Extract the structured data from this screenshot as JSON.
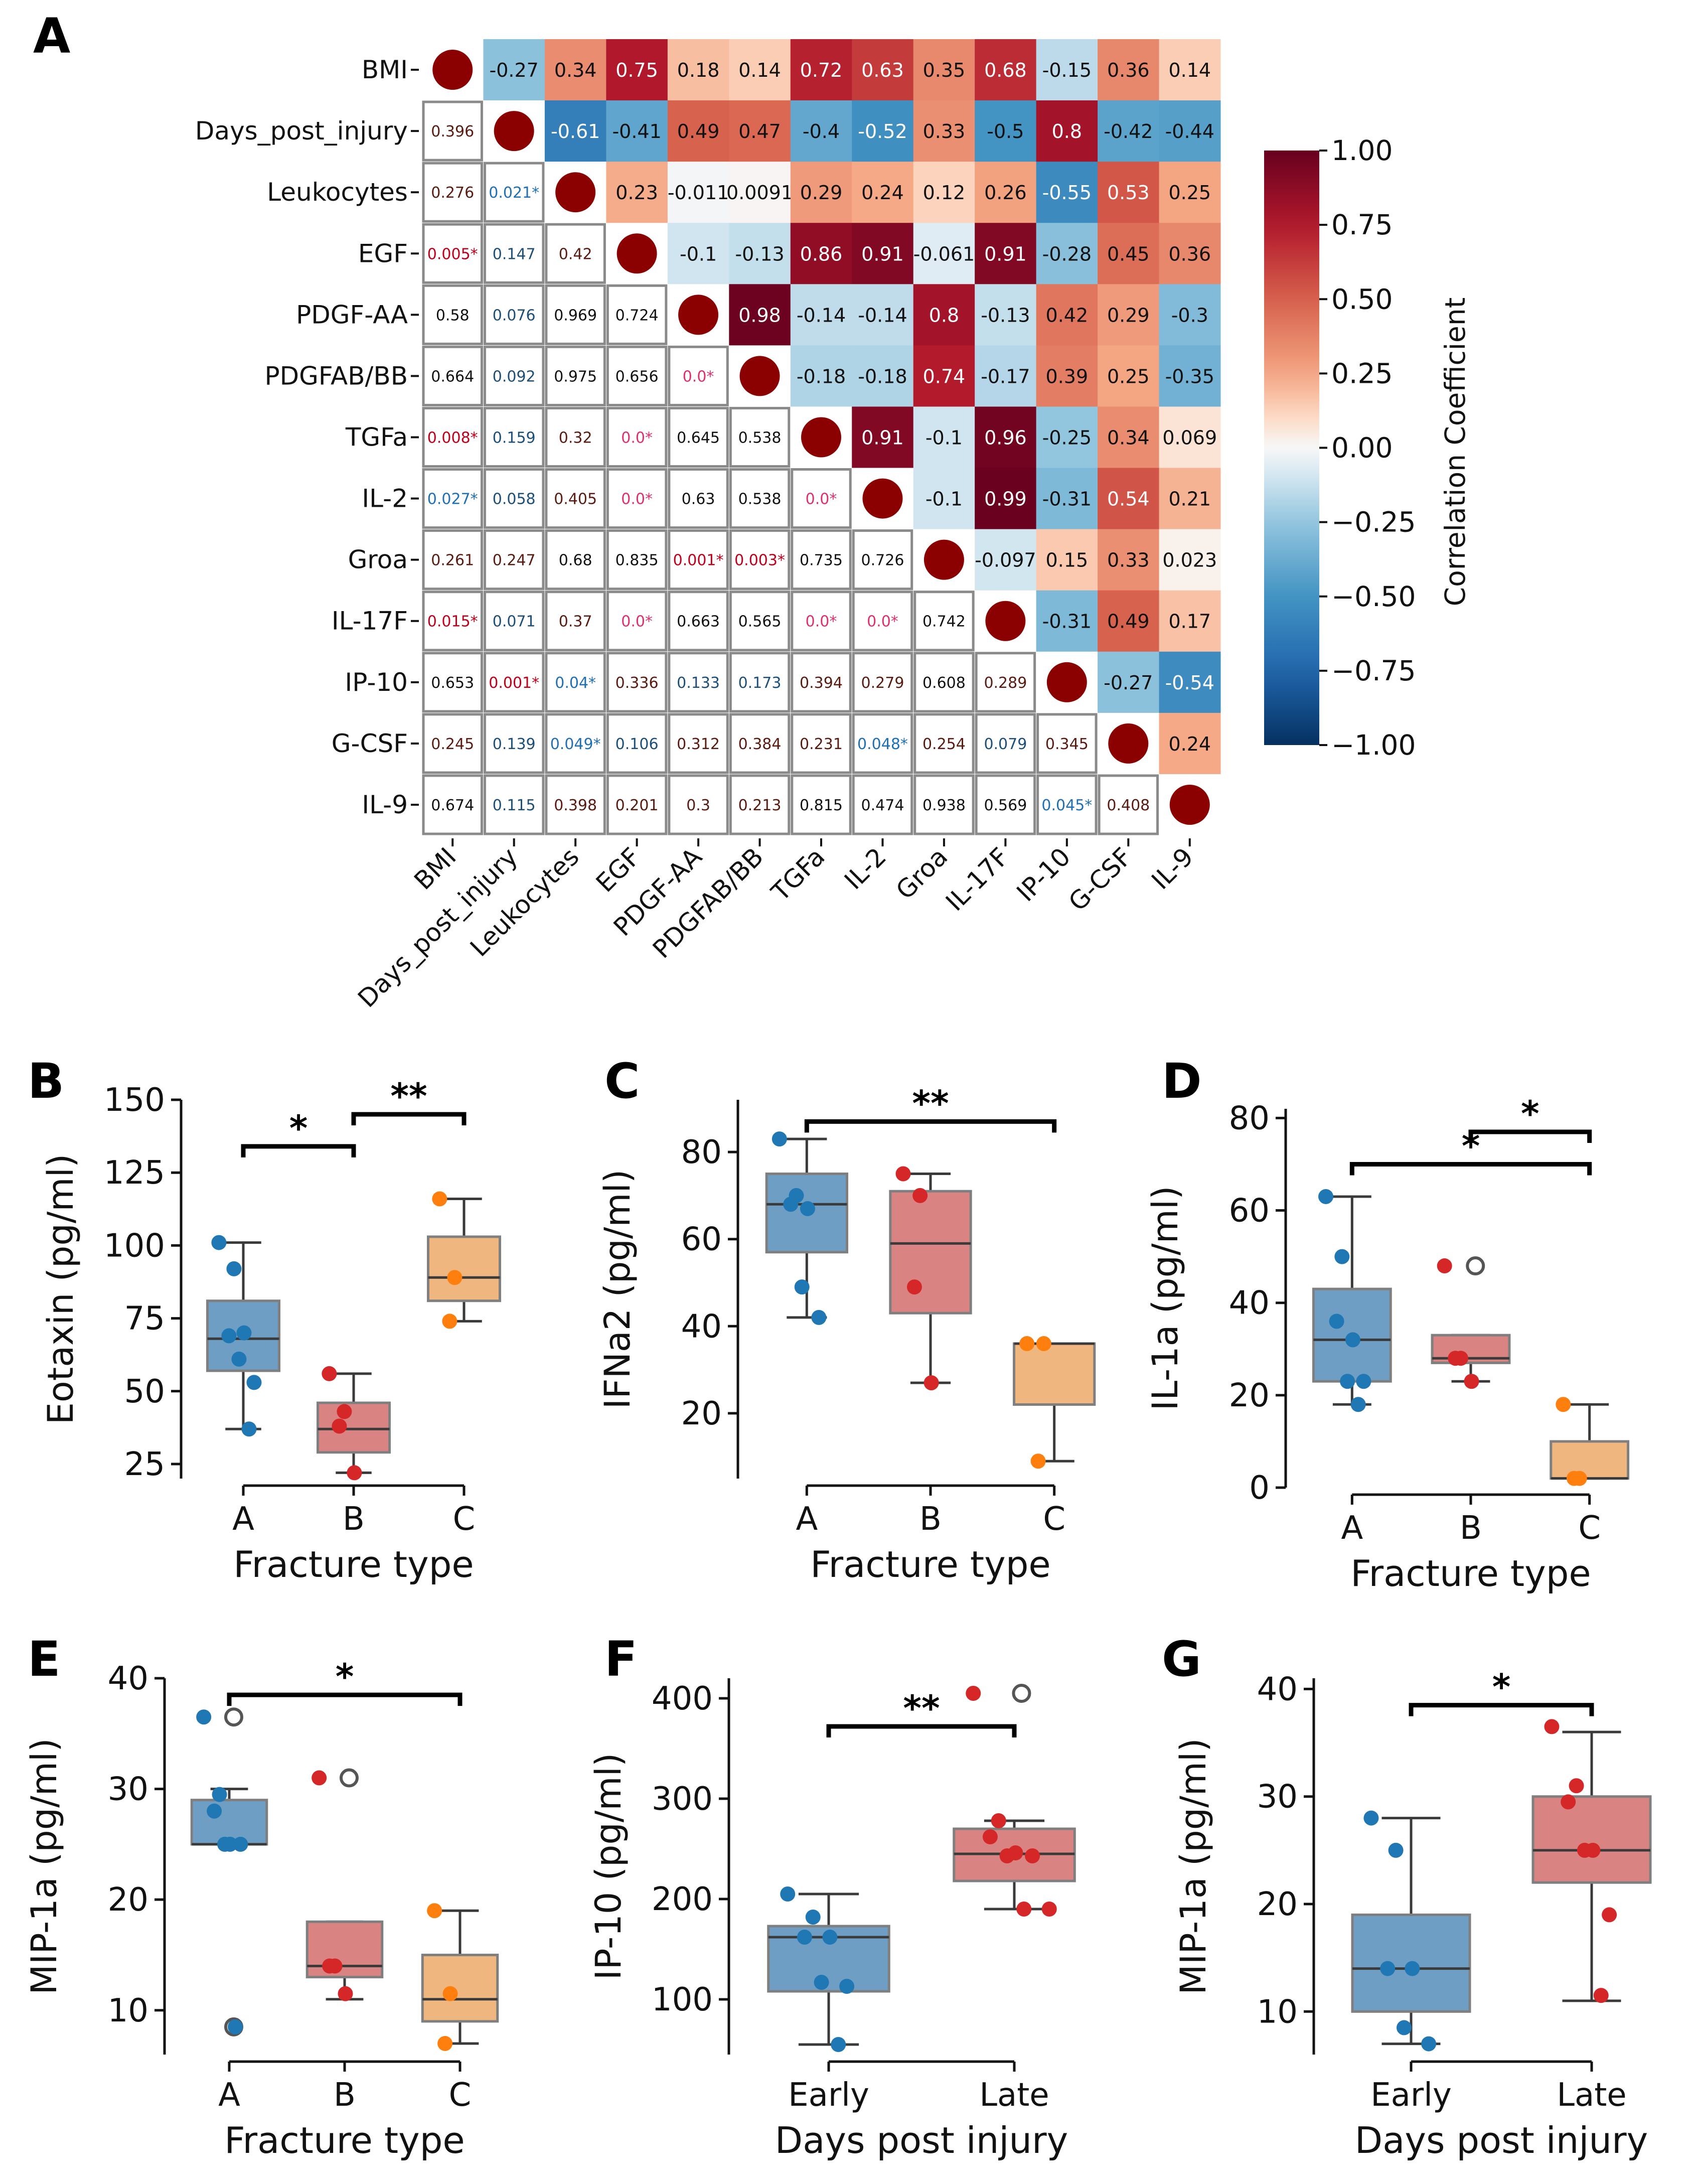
{
  "figure": {
    "panel_labels": [
      "A",
      "B",
      "C",
      "D",
      "E",
      "F",
      "G"
    ]
  },
  "chart_data": [
    {
      "panel": "A",
      "type": "heatmap",
      "variables": [
        "BMI",
        "Days_post_injury",
        "Leukocytes",
        "EGF",
        "PDGF-AA",
        "PDGFAB/BB",
        "TGFa",
        "IL-2",
        "Groa",
        "IL-17F",
        "IP-10",
        "G-CSF",
        "IL-9"
      ],
      "upper_triangle_labels": [
        [
          "",
          "-0.27",
          "0.34",
          "0.75",
          "0.18",
          "0.14",
          "0.72",
          "0.63",
          "0.35",
          "0.68",
          "-0.15",
          "0.36",
          "0.14"
        ],
        [
          "",
          "",
          "-0.61",
          "-0.41",
          "0.49",
          "0.47",
          "-0.4",
          "-0.52",
          "0.33",
          "-0.5",
          "0.8",
          "-0.42",
          "-0.44"
        ],
        [
          "",
          "",
          "",
          "0.23",
          "-0.011",
          "0.0091",
          "0.29",
          "0.24",
          "0.12",
          "0.26",
          "-0.55",
          "0.53",
          "0.25"
        ],
        [
          "",
          "",
          "",
          "",
          "-0.1",
          "-0.13",
          "0.86",
          "0.91",
          "-0.061",
          "0.91",
          "-0.28",
          "0.45",
          "0.36"
        ],
        [
          "",
          "",
          "",
          "",
          "",
          "0.98",
          "-0.14",
          "-0.14",
          "0.8",
          "-0.13",
          "0.42",
          "0.29",
          "-0.3"
        ],
        [
          "",
          "",
          "",
          "",
          "",
          "",
          "-0.18",
          "-0.18",
          "0.74",
          "-0.17",
          "0.39",
          "0.25",
          "-0.35"
        ],
        [
          "",
          "",
          "",
          "",
          "",
          "",
          "",
          "0.91",
          "-0.1",
          "0.96",
          "-0.25",
          "0.34",
          "0.069"
        ],
        [
          "",
          "",
          "",
          "",
          "",
          "",
          "",
          "",
          "-0.1",
          "0.99",
          "-0.31",
          "0.54",
          "0.21"
        ],
        [
          "",
          "",
          "",
          "",
          "",
          "",
          "",
          "",
          "",
          "-0.097",
          "0.15",
          "0.33",
          "0.023"
        ],
        [
          "",
          "",
          "",
          "",
          "",
          "",
          "",
          "",
          "",
          "",
          "-0.31",
          "0.49",
          "0.17"
        ],
        [
          "",
          "",
          "",
          "",
          "",
          "",
          "",
          "",
          "",
          "",
          "",
          "-0.27",
          "-0.54"
        ],
        [
          "",
          "",
          "",
          "",
          "",
          "",
          "",
          "",
          "",
          "",
          "",
          "",
          "0.24"
        ],
        [
          "",
          "",
          "",
          "",
          "",
          "",
          "",
          "",
          "",
          "",
          "",
          "",
          ""
        ]
      ],
      "lower_triangle_pvalues": [
        [],
        [
          "0.396"
        ],
        [
          "0.276",
          "0.021*"
        ],
        [
          "0.005*",
          "0.147",
          "0.42"
        ],
        [
          "0.58",
          "0.076",
          "0.969",
          "0.724"
        ],
        [
          "0.664",
          "0.092",
          "0.975",
          "0.656",
          "0.0*"
        ],
        [
          "0.008*",
          "0.159",
          "0.32",
          "0.0*",
          "0.645",
          "0.538"
        ],
        [
          "0.027*",
          "0.058",
          "0.405",
          "0.0*",
          "0.63",
          "0.538",
          "0.0*"
        ],
        [
          "0.261",
          "0.247",
          "0.68",
          "0.835",
          "0.001*",
          "0.003*",
          "0.735",
          "0.726"
        ],
        [
          "0.015*",
          "0.071",
          "0.37",
          "0.0*",
          "0.663",
          "0.565",
          "0.0*",
          "0.0*",
          "0.742"
        ],
        [
          "0.653",
          "0.001*",
          "0.04*",
          "0.336",
          "0.133",
          "0.173",
          "0.394",
          "0.279",
          "0.608",
          "0.289"
        ],
        [
          "0.245",
          "0.139",
          "0.049*",
          "0.106",
          "0.312",
          "0.384",
          "0.231",
          "0.048*",
          "0.254",
          "0.079",
          "0.345"
        ],
        [
          "0.674",
          "0.115",
          "0.398",
          "0.201",
          "0.3",
          "0.213",
          "0.815",
          "0.474",
          "0.938",
          "0.569",
          "0.045*",
          "0.408"
        ]
      ],
      "colorbar": {
        "label": "Correlation Coefficient",
        "range": [
          -1.0,
          1.0
        ],
        "ticks": [
          "1.00",
          "0.75",
          "0.50",
          "0.25",
          "0.00",
          "−0.25",
          "−0.50",
          "−0.75",
          "−1.00"
        ],
        "colormap": "RdBu_r"
      },
      "colors": {
        "diagonal_dot": "#8b0000",
        "grid_line": "#8a8a8a"
      }
    },
    {
      "panel": "B",
      "type": "box",
      "ylabel": "Eotaxin (pg/ml)",
      "xlabel": "Fracture type",
      "ylim": [
        20,
        150
      ],
      "yticks": [
        "25",
        "50",
        "75",
        "100",
        "125",
        "150"
      ],
      "categories": [
        "A",
        "B",
        "C"
      ],
      "boxes": [
        {
          "q1": 57,
          "median": 68,
          "q3": 81,
          "whislo": 37,
          "whishi": 101
        },
        {
          "q1": 29,
          "median": 37,
          "q3": 46,
          "whislo": 22,
          "whishi": 56
        },
        {
          "q1": 81,
          "median": 89,
          "q3": 103,
          "whislo": 74,
          "whishi": 116
        }
      ],
      "points": [
        [
          101,
          92,
          69,
          70,
          61,
          53,
          37
        ],
        [
          56,
          43,
          38,
          22
        ],
        [
          116,
          89,
          74
        ]
      ],
      "outliers": [
        [],
        [],
        []
      ],
      "brackets": [
        {
          "from": 0,
          "to": 1,
          "y": 134,
          "label": "*"
        },
        {
          "from": 1,
          "to": 2,
          "y": 145,
          "label": "**"
        }
      ]
    },
    {
      "panel": "C",
      "type": "box",
      "ylabel": "IFNa2 (pg/ml)",
      "xlabel": "Fracture type",
      "ylim": [
        5,
        92
      ],
      "yticks": [
        "20",
        "40",
        "60",
        "80"
      ],
      "categories": [
        "A",
        "B",
        "C"
      ],
      "boxes": [
        {
          "q1": 57,
          "median": 68,
          "q3": 75,
          "whislo": 42,
          "whishi": 83
        },
        {
          "q1": 43,
          "median": 59,
          "q3": 71,
          "whislo": 27,
          "whishi": 75
        },
        {
          "q1": 22,
          "median": 36,
          "q3": 36,
          "whislo": 9,
          "whishi": 36
        }
      ],
      "points": [
        [
          83,
          70,
          68,
          67,
          49,
          42
        ],
        [
          75,
          70,
          49,
          27
        ],
        [
          36,
          36,
          9
        ]
      ],
      "outliers": [
        [],
        [],
        []
      ],
      "brackets": [
        {
          "from": 0,
          "to": 2,
          "y": 87,
          "label": "**"
        }
      ]
    },
    {
      "panel": "D",
      "type": "box",
      "ylabel": "IL-1a (pg/ml)",
      "xlabel": "Fracture type",
      "ylim": [
        0,
        82
      ],
      "yticks": [
        "0",
        "20",
        "40",
        "60",
        "80"
      ],
      "categories": [
        "A",
        "B",
        "C"
      ],
      "boxes": [
        {
          "q1": 23,
          "median": 32,
          "q3": 43,
          "whislo": 18,
          "whishi": 63
        },
        {
          "q1": 27,
          "median": 28,
          "q3": 33,
          "whislo": 23,
          "whishi": 33
        },
        {
          "q1": 2,
          "median": 2,
          "q3": 10,
          "whislo": 2,
          "whishi": 18
        }
      ],
      "points": [
        [
          63,
          50,
          36,
          32,
          23,
          23,
          18
        ],
        [
          48,
          28,
          28,
          23
        ],
        [
          18,
          2,
          2
        ]
      ],
      "outliers": [
        [],
        [
          48
        ],
        []
      ],
      "brackets": [
        {
          "from": 0,
          "to": 2,
          "y": 70,
          "label": "*"
        },
        {
          "from": 1,
          "to": 2,
          "y": 77,
          "label": "*"
        }
      ]
    },
    {
      "panel": "E",
      "type": "box",
      "ylabel": "MIP-1a (pg/ml)",
      "xlabel": "Fracture type",
      "ylim": [
        6,
        40
      ],
      "yticks": [
        "10",
        "20",
        "30",
        "40"
      ],
      "categories": [
        "A",
        "B",
        "C"
      ],
      "boxes": [
        {
          "q1": 25,
          "median": 25,
          "q3": 29,
          "whislo": 25,
          "whishi": 30
        },
        {
          "q1": 13,
          "median": 14,
          "q3": 18,
          "whislo": 11,
          "whishi": 18
        },
        {
          "q1": 9,
          "median": 11,
          "q3": 15,
          "whislo": 7,
          "whishi": 19
        }
      ],
      "points": [
        [
          36.5,
          29.5,
          28,
          25,
          25,
          25,
          8.5
        ],
        [
          31,
          14,
          14,
          11.5
        ],
        [
          19,
          11.5,
          7
        ]
      ],
      "outliers": [
        [
          36.5,
          8.5
        ],
        [
          31
        ],
        []
      ],
      "brackets": [
        {
          "from": 0,
          "to": 2,
          "y": 38.5,
          "label": "*"
        }
      ]
    },
    {
      "panel": "F",
      "type": "box",
      "ylabel": "IP-10 (pg/ml)",
      "xlabel": "Days post injury",
      "ylim": [
        45,
        420
      ],
      "yticks": [
        "100",
        "200",
        "300",
        "400"
      ],
      "categories": [
        "Early",
        "Late"
      ],
      "boxes": [
        {
          "q1": 108,
          "median": 162,
          "q3": 173,
          "whislo": 55,
          "whishi": 205
        },
        {
          "q1": 218,
          "median": 245,
          "q3": 270,
          "whislo": 190,
          "whishi": 278
        }
      ],
      "points": [
        [
          205,
          182,
          162,
          162,
          117,
          113,
          55
        ],
        [
          405,
          278,
          262,
          246,
          243,
          243,
          190,
          190
        ]
      ],
      "outliers": [
        [],
        [
          405
        ]
      ],
      "brackets": [
        {
          "from": 0,
          "to": 1,
          "y": 372,
          "label": "**"
        }
      ]
    },
    {
      "panel": "G",
      "type": "box",
      "ylabel": "MIP-1a (pg/ml)",
      "xlabel": "Days post injury",
      "ylim": [
        6,
        41
      ],
      "yticks": [
        "10",
        "20",
        "30",
        "40"
      ],
      "categories": [
        "Early",
        "Late"
      ],
      "boxes": [
        {
          "q1": 10,
          "median": 14,
          "q3": 19,
          "whislo": 7,
          "whishi": 28
        },
        {
          "q1": 22,
          "median": 25,
          "q3": 30,
          "whislo": 11,
          "whishi": 36
        }
      ],
      "points": [
        [
          28,
          25,
          14,
          14,
          8.5,
          7
        ],
        [
          36.5,
          31,
          29.5,
          25,
          25,
          19,
          11.5
        ]
      ],
      "outliers": [
        [],
        []
      ],
      "brackets": [
        {
          "from": 0,
          "to": 1,
          "y": 38.5,
          "label": "*"
        }
      ]
    }
  ],
  "colors": {
    "group_fill": [
      "#6f9ec4",
      "#d98383",
      "#f0b67f"
    ],
    "group_point": [
      "#1f77b4",
      "#d62728",
      "#ff7f0e"
    ],
    "box_edge": "#7f7f7f",
    "median": "#3a3a3a",
    "whisker": "#3a3a3a",
    "bracket": "#000000",
    "outlier_edge": "#555555"
  }
}
